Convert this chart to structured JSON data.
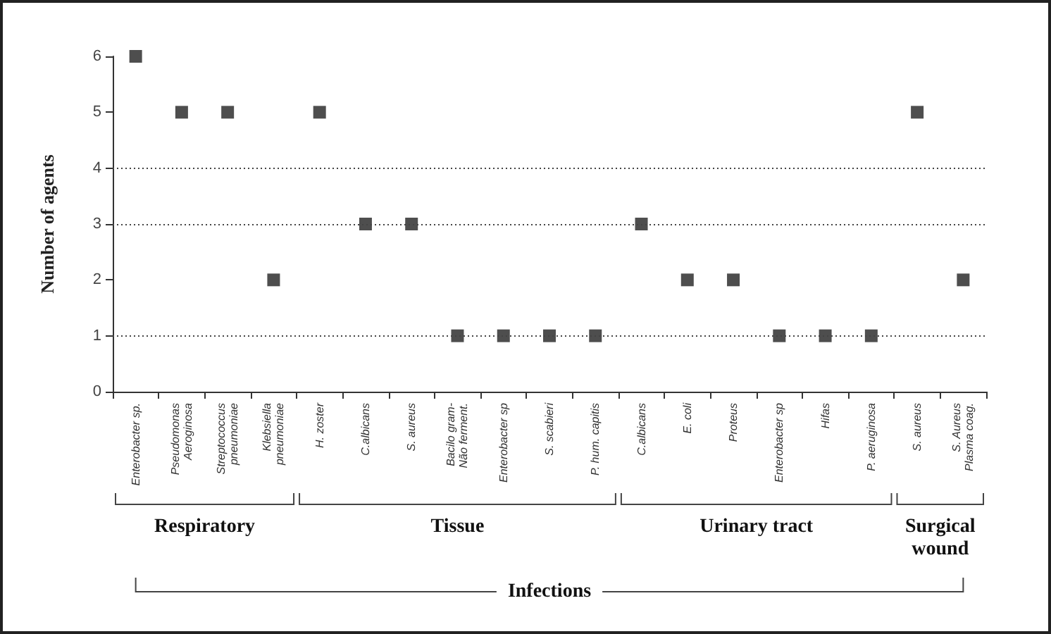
{
  "chart_data": {
    "type": "scatter",
    "ylabel": "Number of agents",
    "categories": [
      "Enterobacter sp.",
      "Pseudomonas\nAeroginosa",
      "Streptococcus\npneumoniae",
      "Klebsiella\npneumoniae",
      "H. zoster",
      "C.albicans",
      "S. aureus",
      "Bacilo gram-\nNão ferment.",
      "Enterobacter sp",
      "S. scabieri",
      "P. hum. capitis",
      "C.albicans",
      "E. coli",
      "Proteus",
      "Enterobacter sp",
      "Hifas",
      "P. aeruginosa",
      "S. aureus",
      "S. Aureus\nPlasma coag."
    ],
    "values": [
      6,
      5,
      5,
      2,
      5,
      3,
      3,
      1,
      1,
      1,
      1,
      3,
      2,
      2,
      1,
      1,
      1,
      5,
      2
    ],
    "color": "#222222",
    "marker": "square",
    "ylim": [
      0,
      6
    ],
    "yticks": [
      0,
      1,
      2,
      3,
      4,
      5,
      6
    ],
    "grid": false,
    "ref_lines": [
      {
        "axis": "y",
        "value": 1,
        "color": "#444444",
        "line_style": "dotted"
      },
      {
        "axis": "y",
        "value": 3,
        "color": "#444444",
        "line_style": "dotted"
      },
      {
        "axis": "y",
        "value": 4,
        "color": "#444444",
        "line_style": "dotted"
      }
    ],
    "annotations": [
      "Respiratory",
      "Tissue",
      "Urinary tract",
      "Surgical\nwound",
      "Infections"
    ]
  }
}
